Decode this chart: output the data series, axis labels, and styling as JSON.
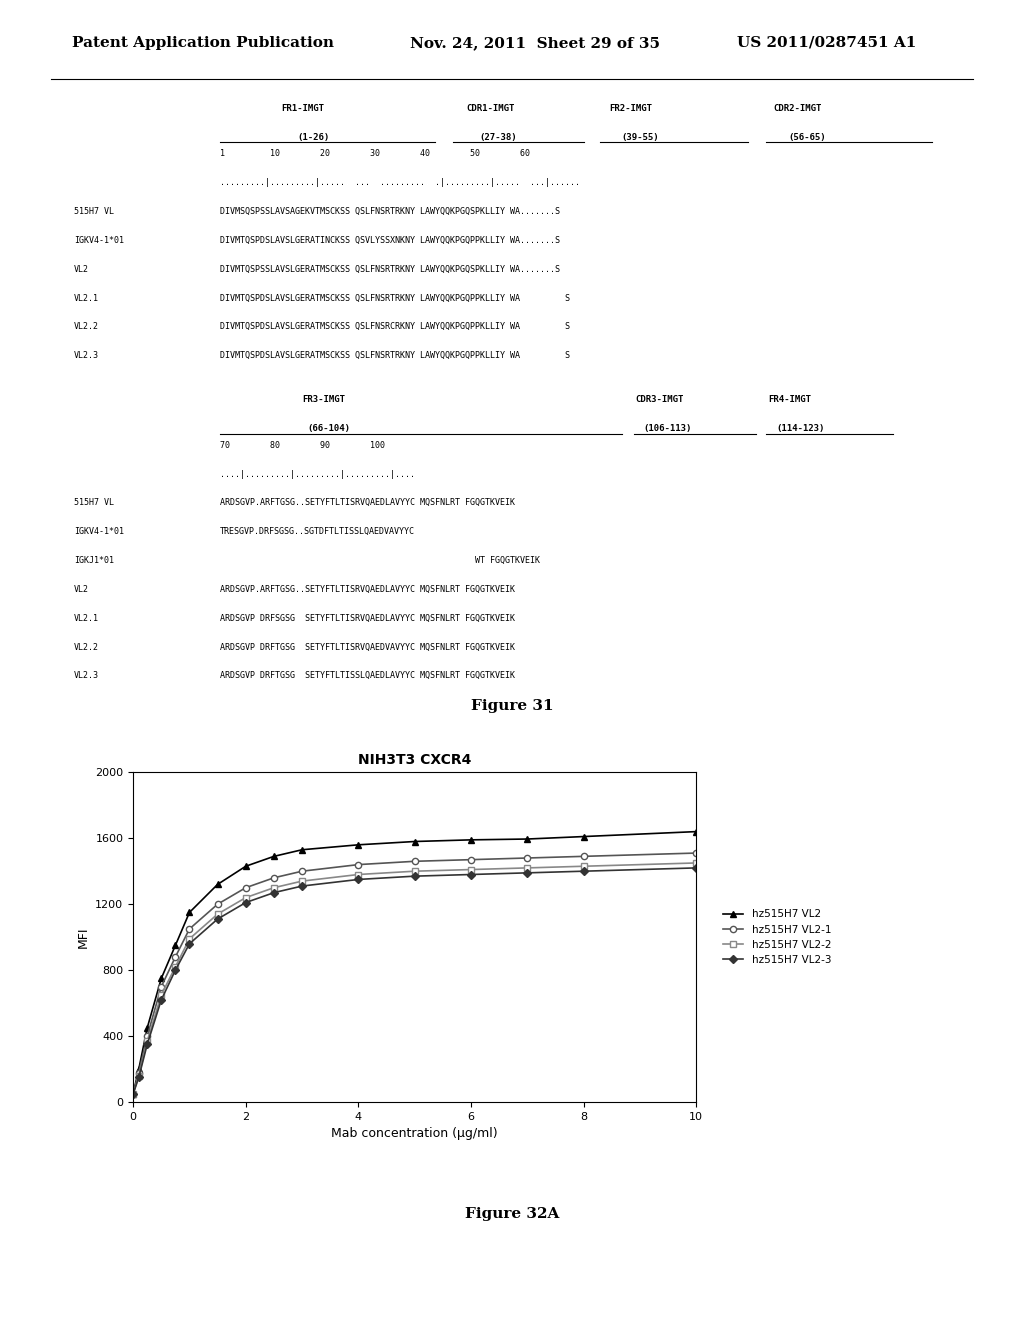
{
  "header_left": "Patent Application Publication",
  "header_mid": "Nov. 24, 2011  Sheet 29 of 35",
  "header_right": "US 2011/0287451 A1",
  "fig31_caption": "Figure 31",
  "fig32a_caption": "Figure 32A",
  "graph_title": "NIH3T3 CXCR4",
  "xlabel": "Mab concentration (µg/ml)",
  "ylabel": "MFI",
  "xlim": [
    0,
    10
  ],
  "ylim": [
    0,
    2000
  ],
  "xticks": [
    0,
    2,
    4,
    6,
    8,
    10
  ],
  "yticks": [
    0,
    400,
    800,
    1200,
    1600,
    2000
  ],
  "series": {
    "hz515H7 VL2": {
      "x": [
        0,
        0.1,
        0.25,
        0.5,
        0.75,
        1.0,
        1.5,
        2.0,
        2.5,
        3.0,
        4.0,
        5.0,
        6.0,
        7.0,
        8.0,
        10.0
      ],
      "y": [
        50,
        200,
        450,
        750,
        950,
        1150,
        1320,
        1430,
        1490,
        1530,
        1560,
        1580,
        1590,
        1595,
        1610,
        1640
      ],
      "color": "#000000",
      "marker": "^",
      "linestyle": "-"
    },
    "hz515H7 VL2-1": {
      "x": [
        0,
        0.1,
        0.25,
        0.5,
        0.75,
        1.0,
        1.5,
        2.0,
        2.5,
        3.0,
        4.0,
        5.0,
        6.0,
        7.0,
        8.0,
        10.0
      ],
      "y": [
        50,
        180,
        400,
        700,
        880,
        1050,
        1200,
        1300,
        1360,
        1400,
        1440,
        1460,
        1470,
        1480,
        1490,
        1510
      ],
      "color": "#555555",
      "marker": "o",
      "linestyle": "-"
    },
    "hz515H7 VL2-2": {
      "x": [
        0,
        0.1,
        0.25,
        0.5,
        0.75,
        1.0,
        1.5,
        2.0,
        2.5,
        3.0,
        4.0,
        5.0,
        6.0,
        7.0,
        8.0,
        10.0
      ],
      "y": [
        50,
        160,
        370,
        650,
        820,
        990,
        1140,
        1240,
        1300,
        1340,
        1380,
        1400,
        1410,
        1420,
        1430,
        1450
      ],
      "color": "#888888",
      "marker": "s",
      "linestyle": "-"
    },
    "hz515H7 VL2-3": {
      "x": [
        0,
        0.1,
        0.25,
        0.5,
        0.75,
        1.0,
        1.5,
        2.0,
        2.5,
        3.0,
        4.0,
        5.0,
        6.0,
        7.0,
        8.0,
        10.0
      ],
      "y": [
        50,
        150,
        350,
        620,
        800,
        960,
        1110,
        1210,
        1270,
        1310,
        1350,
        1370,
        1380,
        1390,
        1400,
        1420
      ],
      "color": "#333333",
      "marker": "D",
      "linestyle": "-"
    }
  },
  "seq_table": {
    "rows_top": [
      [
        "515H7 VL",
        "DIVMSQSPSSLAVSAGEKVTMSCKSS QSLFNSRTRKNY LAWYQQKPGQSPKLLIY WA.......S"
      ],
      [
        "IGKV4-1*01",
        "DIVMTQSPDSLAVSLGERATINCKSS QSVLYSSXNKNY LAWYQQKPGQPPKLLIY WA.......S"
      ],
      [
        "VL2",
        "DIVMTQSPSSLAVSLGERATMSCKSS QSLFNSRTRKNY LAWYQQKPGQSPKLLIY WA.......S"
      ],
      [
        "VL2.1",
        "DIVMTQSPDSLAVSLGERATMSCKSS QSLFNSRTRKNY LAWYQQKPGQPPKLLIY WA         S"
      ],
      [
        "VL2.2",
        "DIVMTQSPDSLAVSLGERATMSCKSS QSLFNSRCRKNY LAWYQQKPGQPPKLLIY WA         S"
      ],
      [
        "VL2.3",
        "DIVMTQSPDSLAVSLGERATMSCKSS QSLFNSRTRKNY LAWYQQKPGQPPKLLIY WA         S"
      ]
    ],
    "rows_bot": [
      [
        "515H7 VL",
        "ARDSGVP.ARFTGSG..SETYFTLTISRVQAEDLAVYYC MQSFNLRT FGQGTKVEIK"
      ],
      [
        "IGKV4-1*01",
        "TRESGVP.DRFSGSG..SGTDFTLTISSLQAEDVAVYYC"
      ],
      [
        "IGKJ1*01",
        "                                                   WT FGQGTKVEIK"
      ],
      [
        "VL2",
        "ARDSGVP.ARFTGSG..SETYFTLTISRVQAEDLAVYYC MQSFNLRT FGQGTKVEIK"
      ],
      [
        "VL2.1",
        "ARDSGVP DRFSGSG  SETYFTLTISRVQAEDLAVYYC MQSFNLRT FGQGTKVEIK"
      ],
      [
        "VL2.2",
        "ARDSGVP DRFTGSG  SETYFTLTISRVQAEDVAVYYC MQSFNLRT FGQGTKVEIK"
      ],
      [
        "VL2.3",
        "ARDSGVP DRFTGSG  SETYFTLTISSLQAEDLAVYYC MQSFNLRT FGQGTKVEIK"
      ]
    ]
  }
}
